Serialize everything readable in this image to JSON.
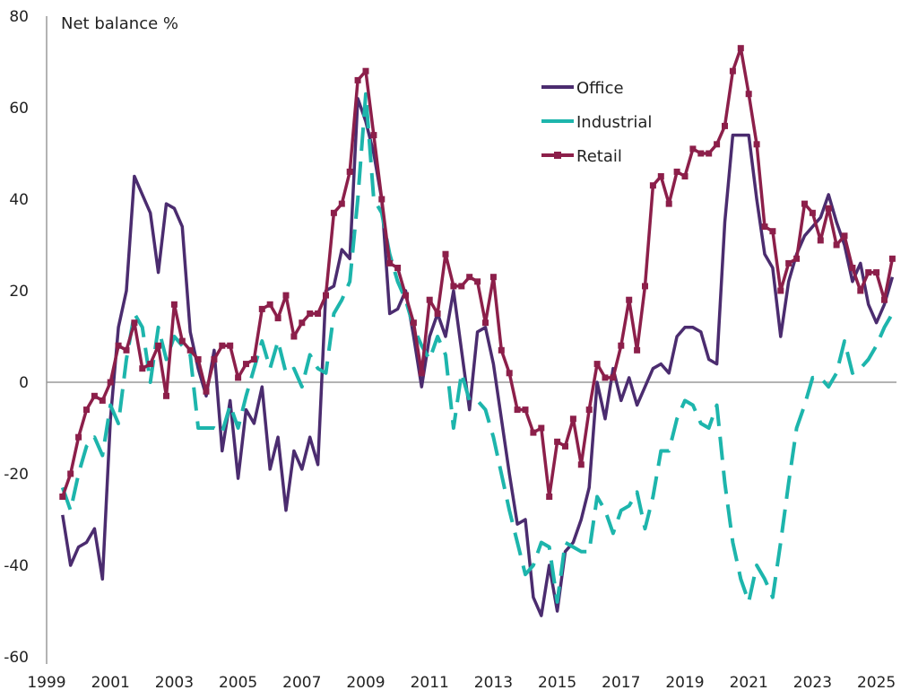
{
  "chart_data": {
    "type": "line",
    "title": "",
    "ylabel": "Net balance %",
    "xlabel": "",
    "xlim": [
      1999,
      2025.6
    ],
    "ylim": [
      -60,
      80
    ],
    "x_ticks": [
      "1999",
      "2001",
      "2003",
      "2005",
      "2007",
      "2009",
      "2011",
      "2013",
      "2015",
      "2017",
      "2019",
      "2021",
      "2023",
      "2025"
    ],
    "y_ticks": [
      "80",
      "60",
      "40",
      "20",
      "0",
      "-20",
      "-40",
      "-60"
    ],
    "grid": false,
    "legend_position": "top-right",
    "x_start": 1999.5,
    "x_step": 0.25,
    "series": [
      {
        "name": "Office",
        "color": "#4b2c6f",
        "style": "solid",
        "values": [
          -29,
          -40,
          -36,
          -35,
          -32,
          -43,
          -8,
          12,
          20,
          45,
          41,
          37,
          24,
          39,
          38,
          34,
          11,
          3,
          -3,
          7,
          -15,
          -4,
          -21,
          -6,
          -9,
          -1,
          -19,
          -12,
          -28,
          -15,
          -19,
          -12,
          -18,
          20,
          21,
          29,
          27,
          62,
          57,
          50,
          40,
          15,
          16,
          20,
          10,
          -1,
          10,
          15,
          10,
          20,
          7,
          -6,
          11,
          12,
          4,
          -8,
          -20,
          -31,
          -30,
          -47,
          -51,
          -40,
          -50,
          -37,
          -35,
          -30,
          -23,
          0,
          -8,
          3,
          -4,
          1,
          -5,
          -1,
          3,
          4,
          2,
          10,
          12,
          12,
          11,
          5,
          4,
          35,
          54,
          54,
          54,
          40,
          28,
          25,
          10,
          22,
          28,
          32,
          34,
          36,
          41,
          35,
          30,
          22,
          26,
          17,
          13,
          17,
          23
        ]
      },
      {
        "name": "Industrial",
        "color": "#1db5ac",
        "style": "dashed",
        "values": [
          -23,
          -28,
          -20,
          -14,
          -12,
          -16,
          -5,
          -9,
          5,
          15,
          12,
          0,
          12,
          5,
          10,
          8,
          6,
          -10,
          -10,
          -10,
          -11,
          -5,
          -10,
          -3,
          3,
          9,
          3,
          9,
          2,
          3,
          -1,
          6,
          3,
          2,
          15,
          18,
          22,
          40,
          63,
          40,
          37,
          28,
          22,
          18,
          12,
          8,
          5,
          10,
          6,
          -10,
          2,
          -4,
          -4,
          -6,
          -12,
          -20,
          -28,
          -35,
          -42,
          -40,
          -35,
          -36,
          -48,
          -35,
          -36,
          -37,
          -37,
          -25,
          -28,
          -33,
          -28,
          -27,
          -24,
          -32,
          -25,
          -15,
          -15,
          -8,
          -4,
          -5,
          -9,
          -10,
          -5,
          -22,
          -35,
          -43,
          -48,
          -40,
          -43,
          -47,
          -35,
          -22,
          -10,
          -5,
          1,
          1,
          -1,
          2,
          9,
          2,
          3,
          5,
          8,
          12,
          15
        ]
      },
      {
        "name": "Retail",
        "color": "#8c1f4a",
        "style": "solid-markers",
        "values": [
          -25,
          -20,
          -12,
          -6,
          -3,
          -4,
          0,
          8,
          7,
          13,
          3,
          4,
          8,
          -3,
          17,
          9,
          7,
          5,
          -2,
          5,
          8,
          8,
          1,
          4,
          5,
          16,
          17,
          14,
          19,
          10,
          13,
          15,
          15,
          19,
          37,
          39,
          46,
          66,
          68,
          54,
          40,
          26,
          25,
          19,
          13,
          2,
          18,
          15,
          28,
          21,
          21,
          23,
          22,
          13,
          23,
          7,
          2,
          -6,
          -6,
          -11,
          -10,
          -25,
          -13,
          -14,
          -8,
          -18,
          -6,
          4,
          1,
          1,
          8,
          18,
          7,
          21,
          43,
          45,
          39,
          46,
          45,
          51,
          50,
          50,
          52,
          56,
          68,
          73,
          63,
          52,
          34,
          33,
          20,
          26,
          27,
          39,
          37,
          31,
          38,
          30,
          32,
          25,
          20,
          24,
          24,
          18,
          27
        ]
      }
    ]
  }
}
